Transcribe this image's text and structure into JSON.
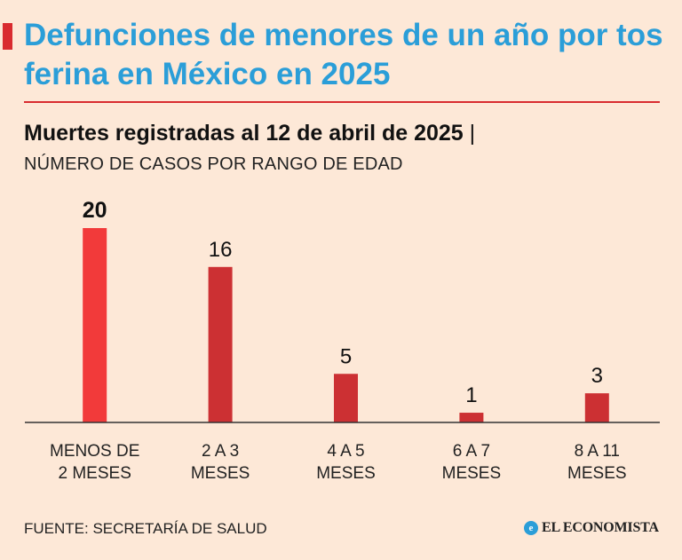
{
  "title": "Defunciones de menores de un año por tos ferina en México en 2025",
  "subtitle": "Muertes registradas al 12 de abril de 2025",
  "subtitle_separator": "|",
  "subhead": "NÚMERO DE CASOS POR RANGO DE EDAD",
  "source": "FUENTE: SECRETARÍA DE SALUD",
  "brand": {
    "icon_char": "e",
    "name": "EL ECONOMISTA"
  },
  "colors": {
    "background": "#fde8d7",
    "title": "#2b9ed8",
    "accent": "#d92b2f",
    "highlight_bar": "#f23a3a",
    "bar": "#cc3033",
    "axis": "#333333"
  },
  "chart_data": {
    "type": "bar",
    "title": "Muertes registradas al 12 de abril de 2025",
    "xlabel": "",
    "ylabel": "NÚMERO DE CASOS POR RANGO DE EDAD",
    "categories": [
      [
        "MENOS DE",
        "2 MESES"
      ],
      [
        "2 A 3",
        "MESES"
      ],
      [
        "4 A 5",
        "MESES"
      ],
      [
        "6 A 7",
        "MESES"
      ],
      [
        "8 A 11",
        "MESES"
      ]
    ],
    "values": [
      20,
      16,
      5,
      1,
      3
    ],
    "highlight_index": 0,
    "ylim": [
      0,
      20
    ],
    "grid": false,
    "legend": "none"
  }
}
